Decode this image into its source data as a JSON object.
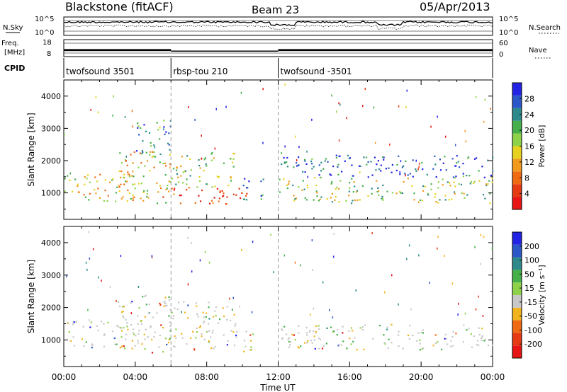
{
  "header": {
    "station": "Blackstone (fitACF)",
    "beam": "Beam 23",
    "date": "05/Apr/2013"
  },
  "top_panels": {
    "nsky_label": "N.Sky",
    "nsearch_label": "N.Search",
    "noise_ticks_left": [
      "10^5",
      "10^0"
    ],
    "noise_ticks_right": [
      "10^5",
      "10^0"
    ],
    "freq_label_1": "Freq.",
    "freq_label_2": "[MHz]",
    "freq_ticks": [
      "18",
      "8"
    ],
    "nave_label": "Nave",
    "nave_ticks": [
      "60",
      "0"
    ],
    "cpid_label": "CPID",
    "cpid_segments": [
      {
        "label": "twofsound 3501",
        "start_h": 0,
        "end_h": 6
      },
      {
        "label": "rbsp-tou 210",
        "start_h": 6,
        "end_h": 12
      },
      {
        "label": "twofsound -3501",
        "start_h": 12,
        "end_h": 24
      }
    ],
    "freq_data": [
      {
        "start_h": 0,
        "end_h": 6,
        "mhz_low": 10,
        "mhz_high": 12
      },
      {
        "start_h": 6,
        "end_h": 12,
        "mhz_low": 10.3,
        "mhz_high": 10.5
      },
      {
        "start_h": 12,
        "end_h": 24,
        "mhz_low": 10,
        "mhz_high": 12
      }
    ]
  },
  "chart_data": [
    {
      "type": "heatmap",
      "title": "",
      "xlabel": "Time UT",
      "ylabel": "Slant Range [km]",
      "xlim": [
        0,
        24
      ],
      "ylim": [
        180,
        4500
      ],
      "x_ticks": [
        "00:00",
        "04:00",
        "08:00",
        "12:00",
        "16:00",
        "20:00",
        "00:00"
      ],
      "y_ticks": [
        "1000",
        "2000",
        "3000",
        "4000"
      ],
      "colorbar": {
        "label": "Power [dB]",
        "ticks": [
          "28",
          "24",
          "20",
          "16",
          "12",
          "8",
          "4"
        ],
        "colors": [
          "#2323e6",
          "#2b57c8",
          "#2e8a8a",
          "#45b04a",
          "#8ed24a",
          "#e6d21e",
          "#f29a1e",
          "#f06a14",
          "#e63a14",
          "#e61414"
        ]
      },
      "echo_regions": [
        {
          "t0": 0.0,
          "t1": 4.0,
          "r0": 750,
          "r1": 1600,
          "level": 0.55
        },
        {
          "t0": 3.0,
          "t1": 6.0,
          "r0": 700,
          "r1": 2400,
          "level": 0.6
        },
        {
          "t0": 4.0,
          "t1": 6.0,
          "r0": 2200,
          "r1": 3300,
          "level": 0.2
        },
        {
          "t0": 6.0,
          "t1": 10.6,
          "r0": 650,
          "r1": 1200,
          "level": 0.9
        },
        {
          "t0": 6.0,
          "t1": 9.6,
          "r0": 1200,
          "r1": 2300,
          "level": 0.45
        },
        {
          "t0": 10.0,
          "t1": 11.3,
          "r0": 800,
          "r1": 1500,
          "level": 0.15
        },
        {
          "t0": 12.0,
          "t1": 24.0,
          "r0": 700,
          "r1": 1500,
          "level": 0.45
        },
        {
          "t0": 12.0,
          "t1": 24.0,
          "r0": 1500,
          "r1": 2200,
          "level": 0.12
        }
      ]
    },
    {
      "type": "heatmap",
      "title": "",
      "xlabel": "Time UT",
      "ylabel": "Slant Range [km]",
      "xlim": [
        0,
        24
      ],
      "ylim": [
        180,
        4500
      ],
      "x_ticks": [
        "00:00",
        "04:00",
        "08:00",
        "12:00",
        "16:00",
        "20:00",
        "00:00"
      ],
      "y_ticks": [
        "1000",
        "2000",
        "3000",
        "4000"
      ],
      "colorbar": {
        "label": "Velocity [m s⁻¹]",
        "ticks": [
          "200",
          "100",
          "50",
          "15",
          "-15",
          "-50",
          "-100",
          "-200"
        ],
        "colors": [
          "#2323e6",
          "#2b57c8",
          "#2e8a8a",
          "#45b04a",
          "#8ed24a",
          "#c8c8c8",
          "#f2b41e",
          "#f06a14",
          "#e63a14",
          "#e61414"
        ]
      },
      "echo_regions": [
        {
          "t0": 0.0,
          "t1": 4.0,
          "r0": 750,
          "r1": 1600,
          "level": 0.5
        },
        {
          "t0": 3.0,
          "t1": 6.0,
          "r0": 600,
          "r1": 2400,
          "level": 0.5
        },
        {
          "t0": 6.0,
          "t1": 10.6,
          "r0": 650,
          "r1": 1300,
          "level": 0.65
        },
        {
          "t0": 6.0,
          "t1": 9.6,
          "r0": 1300,
          "r1": 2200,
          "level": 0.35
        },
        {
          "t0": 12.0,
          "t1": 24.0,
          "r0": 700,
          "r1": 1500,
          "level": 0.5
        }
      ]
    }
  ]
}
